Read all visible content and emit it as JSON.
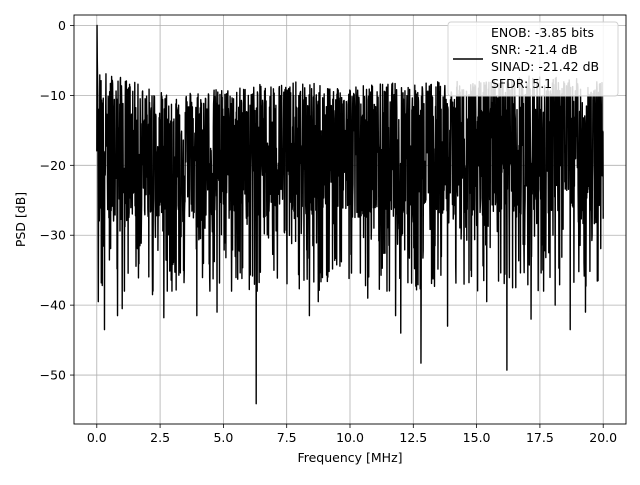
{
  "chart_data": {
    "type": "line",
    "title": "",
    "xlabel": "Frequency [MHz]",
    "ylabel": "PSD [dB]",
    "xlim": [
      -0.9,
      20.9
    ],
    "ylim": [
      -57.0,
      1.5
    ],
    "x_ticks": [
      0.0,
      2.5,
      5.0,
      7.5,
      10.0,
      12.5,
      15.0,
      17.5,
      20.0
    ],
    "x_tick_labels": [
      "0.0",
      "2.5",
      "5.0",
      "7.5",
      "10.0",
      "12.5",
      "15.0",
      "17.5",
      "20.0"
    ],
    "y_ticks": [
      0,
      -10,
      -20,
      -30,
      -40,
      -50
    ],
    "y_tick_labels": [
      "0",
      "−10",
      "−20",
      "−30",
      "−40",
      "−50"
    ],
    "grid": true,
    "legend_position": "top-right",
    "legend_entries": [
      "ENOB: -3.85 bits",
      "SNR: -21.4 dB",
      "SINAD: -21.42 dB",
      "SFDR: 5.1"
    ],
    "series": [
      {
        "color": "#000000",
        "n_points": 2048,
        "upper_envelope": [
          [
            0.0,
            -6
          ],
          [
            2.5,
            -9.5
          ],
          [
            5.0,
            -9
          ],
          [
            7.5,
            -8
          ],
          [
            10.0,
            -8.5
          ],
          [
            12.5,
            -8
          ],
          [
            15.0,
            -8
          ],
          [
            17.5,
            -7
          ],
          [
            20.0,
            -8
          ]
        ],
        "median_level": [
          [
            0.0,
            -17
          ],
          [
            5.0,
            -17
          ],
          [
            10.0,
            -16.5
          ],
          [
            15.0,
            -16
          ],
          [
            20.0,
            -16
          ]
        ],
        "points": [
          [
            0.0,
            -18
          ],
          [
            0.01,
            0.0
          ],
          [
            0.02,
            -5
          ],
          [
            0.04,
            -10
          ],
          [
            0.06,
            -14
          ],
          [
            0.08,
            -12
          ]
        ],
        "deep_dips": [
          [
            0.05,
            -39.5
          ],
          [
            0.3,
            -43.5
          ],
          [
            0.82,
            -41.5
          ],
          [
            1.0,
            -40.5
          ],
          [
            2.2,
            -38.5
          ],
          [
            2.65,
            -41.8
          ],
          [
            3.95,
            -41.5
          ],
          [
            4.75,
            -41.0
          ],
          [
            6.3,
            -54.1
          ],
          [
            8.4,
            -41.5
          ],
          [
            8.75,
            -39.5
          ],
          [
            10.7,
            -39.0
          ],
          [
            11.8,
            -41.5
          ],
          [
            12.0,
            -44.0
          ],
          [
            12.8,
            -48.3
          ],
          [
            13.85,
            -43.0
          ],
          [
            14.5,
            -37.0
          ],
          [
            15.4,
            -39.5
          ],
          [
            16.2,
            -49.3
          ],
          [
            16.55,
            -37.5
          ],
          [
            17.15,
            -42.0
          ],
          [
            17.65,
            -38.0
          ],
          [
            18.1,
            -40.0
          ],
          [
            18.7,
            -43.5
          ],
          [
            19.3,
            -41.0
          ],
          [
            19.8,
            -36.5
          ]
        ]
      }
    ]
  }
}
